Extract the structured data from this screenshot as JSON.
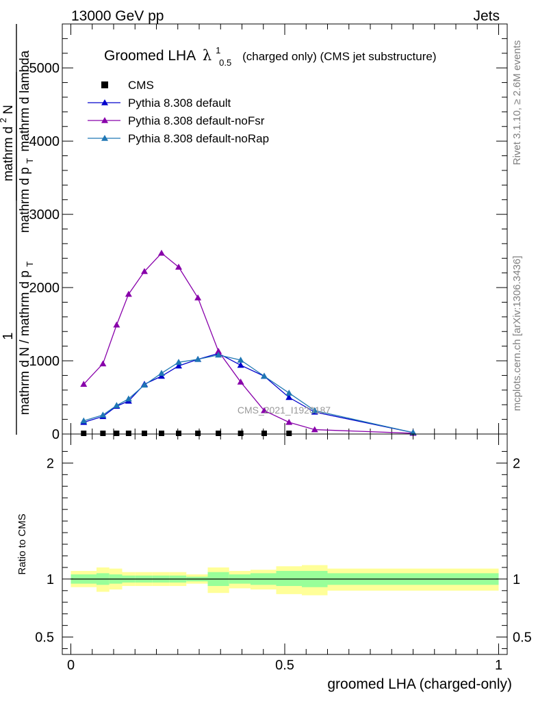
{
  "header": {
    "left": "13000 GeV pp",
    "right": "Jets"
  },
  "side_text": {
    "rivet": "Rivet 3.1.10, ≥ 2.6M events",
    "mcplots": "mcplots.cern.ch [arXiv:1306.3436]"
  },
  "watermark": "CMS_2021_I1920187",
  "chart_data": [
    {
      "type": "line",
      "panel": "main",
      "title": "Groomed LHA",
      "title_symbol": "λ",
      "title_sup": "1",
      "title_sub": "0.5",
      "title_suffix": "(charged only) (CMS jet substructure)",
      "xlabel": "groomed LHA (charged-only)",
      "ylabel": {
        "outer_numerator": "1",
        "outer_denominator": "mathrm d N / mathrm d p",
        "outer_denominator_sub": "T",
        "inner_numerator": "mathrm d",
        "inner_numerator_sup": "2",
        "inner_numerator_tail": "N",
        "inner_denominator_a": "mathrm d p",
        "inner_denominator_a_sub": "T",
        "inner_denominator_b": "mathrm d lambda"
      },
      "xlim": [
        -0.02,
        1.02
      ],
      "ylim": [
        0,
        5600
      ],
      "yticks": [
        0,
        1000,
        2000,
        3000,
        4000,
        5000
      ],
      "ytick_labels": [
        "0",
        "1000",
        "2000",
        "3000",
        "4000",
        "5000"
      ],
      "xticks": [
        0,
        0.5,
        1
      ],
      "xtick_labels": [
        "0",
        "0.5",
        "1"
      ],
      "legend_position": "top-left",
      "series": [
        {
          "name": "CMS",
          "color": "#000000",
          "marker": "square",
          "x": [
            0.03,
            0.075,
            0.107,
            0.135,
            0.172,
            0.212,
            0.252,
            0.297,
            0.345,
            0.397,
            0.452,
            0.51
          ],
          "y": [
            0,
            0,
            0,
            0,
            0,
            0,
            0,
            0,
            0,
            0,
            0,
            0
          ]
        },
        {
          "name": "Pythia 8.308 default",
          "color": "#0000cc",
          "marker": "triangle",
          "x": [
            0.03,
            0.075,
            0.107,
            0.135,
            0.172,
            0.212,
            0.252,
            0.297,
            0.345,
            0.397,
            0.452,
            0.51,
            0.57,
            0.8
          ],
          "y": [
            160,
            240,
            380,
            450,
            680,
            790,
            930,
            1020,
            1100,
            940,
            790,
            500,
            300,
            20
          ]
        },
        {
          "name": "Pythia 8.308 default-noFsr",
          "color": "#8800aa",
          "marker": "triangle",
          "x": [
            0.03,
            0.075,
            0.107,
            0.135,
            0.172,
            0.212,
            0.252,
            0.297,
            0.345,
            0.397,
            0.452,
            0.51,
            0.57,
            0.8
          ],
          "y": [
            680,
            960,
            1490,
            1910,
            2220,
            2470,
            2280,
            1860,
            1130,
            710,
            320,
            160,
            60,
            10
          ]
        },
        {
          "name": "Pythia 8.308 default-noRap",
          "color": "#1f77b4",
          "marker": "triangle",
          "x": [
            0.03,
            0.075,
            0.107,
            0.135,
            0.172,
            0.212,
            0.252,
            0.297,
            0.345,
            0.397,
            0.452,
            0.51,
            0.57,
            0.8
          ],
          "y": [
            180,
            260,
            390,
            480,
            670,
            830,
            980,
            1020,
            1080,
            1010,
            790,
            560,
            320,
            20
          ]
        }
      ]
    },
    {
      "type": "area",
      "panel": "ratio",
      "ylabel": "Ratio to CMS",
      "xlim": [
        -0.02,
        1.02
      ],
      "ylim": [
        0.35,
        2.25
      ],
      "yticks": [
        0.5,
        1,
        2
      ],
      "ytick_labels": [
        "0.5",
        "1",
        "2"
      ],
      "reference_line": 1,
      "bins": [
        {
          "lo": 0.0,
          "hi": 0.06,
          "stat": [
            0.96,
            1.04
          ],
          "total": [
            0.93,
            1.07
          ]
        },
        {
          "lo": 0.06,
          "hi": 0.09,
          "stat": [
            0.95,
            1.05
          ],
          "total": [
            0.89,
            1.1
          ]
        },
        {
          "lo": 0.09,
          "hi": 0.12,
          "stat": [
            0.96,
            1.04
          ],
          "total": [
            0.91,
            1.09
          ]
        },
        {
          "lo": 0.12,
          "hi": 0.15,
          "stat": [
            0.97,
            1.03
          ],
          "total": [
            0.94,
            1.06
          ]
        },
        {
          "lo": 0.15,
          "hi": 0.19,
          "stat": [
            0.97,
            1.03
          ],
          "total": [
            0.94,
            1.06
          ]
        },
        {
          "lo": 0.19,
          "hi": 0.23,
          "stat": [
            0.97,
            1.03
          ],
          "total": [
            0.94,
            1.06
          ]
        },
        {
          "lo": 0.23,
          "hi": 0.27,
          "stat": [
            0.97,
            1.03
          ],
          "total": [
            0.94,
            1.06
          ]
        },
        {
          "lo": 0.27,
          "hi": 0.32,
          "stat": [
            0.98,
            1.02
          ],
          "total": [
            0.96,
            1.04
          ]
        },
        {
          "lo": 0.32,
          "hi": 0.37,
          "stat": [
            0.94,
            1.06
          ],
          "total": [
            0.88,
            1.1
          ]
        },
        {
          "lo": 0.37,
          "hi": 0.42,
          "stat": [
            0.96,
            1.04
          ],
          "total": [
            0.92,
            1.07
          ]
        },
        {
          "lo": 0.42,
          "hi": 0.48,
          "stat": [
            0.95,
            1.05
          ],
          "total": [
            0.91,
            1.08
          ]
        },
        {
          "lo": 0.48,
          "hi": 0.54,
          "stat": [
            0.94,
            1.07
          ],
          "total": [
            0.87,
            1.11
          ]
        },
        {
          "lo": 0.54,
          "hi": 0.6,
          "stat": [
            0.93,
            1.07
          ],
          "total": [
            0.86,
            1.12
          ]
        },
        {
          "lo": 0.6,
          "hi": 1.0,
          "stat": [
            0.95,
            1.05
          ],
          "total": [
            0.9,
            1.09
          ]
        }
      ]
    }
  ]
}
